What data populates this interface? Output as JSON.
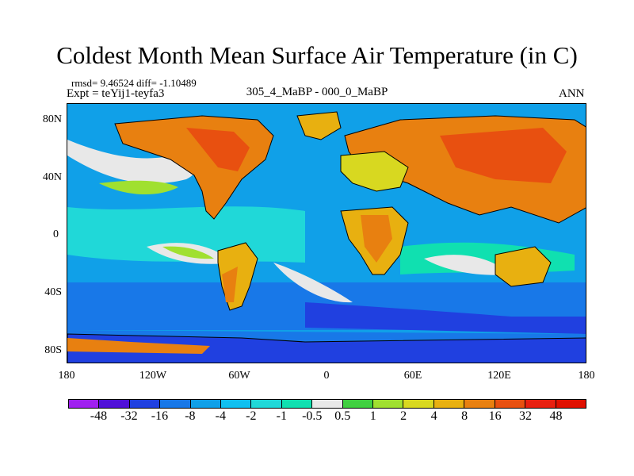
{
  "title": "Coldest Month Mean Surface Air Temperature (in C)",
  "stats": "rmsd= 9.46524 diff= -1.10489",
  "experiment": "Expt = teYij1-teyfa3",
  "difference_label": "305_4_MaBP - 000_0_MaBP",
  "season": "ANN",
  "map": {
    "lat_ticks": [
      "80N",
      "40N",
      "0",
      "40S",
      "80S"
    ],
    "lat_values": [
      80,
      40,
      0,
      -40,
      -80
    ],
    "lon_ticks": [
      "180",
      "120W",
      "60W",
      "0",
      "60E",
      "120E",
      "180"
    ],
    "lon_values": [
      -180,
      -120,
      -60,
      0,
      60,
      120,
      180
    ],
    "lat_range": [
      -90,
      90
    ],
    "lon_range": [
      -180,
      180
    ]
  },
  "colorbar": {
    "labels": [
      "-48",
      "-32",
      "-16",
      "-8",
      "-4",
      "-2",
      "-1",
      "-0.5",
      "0.5",
      "1",
      "2",
      "4",
      "8",
      "16",
      "32",
      "48"
    ],
    "colors": [
      "#a020f0",
      "#5010d8",
      "#2040e0",
      "#1878e8",
      "#10a0e8",
      "#10c0f0",
      "#20d8d8",
      "#10e0b0",
      "#e8e8e8",
      "#40d040",
      "#a0e030",
      "#d8d820",
      "#e8b010",
      "#e88010",
      "#e85010",
      "#e82010",
      "#e01000"
    ]
  }
}
